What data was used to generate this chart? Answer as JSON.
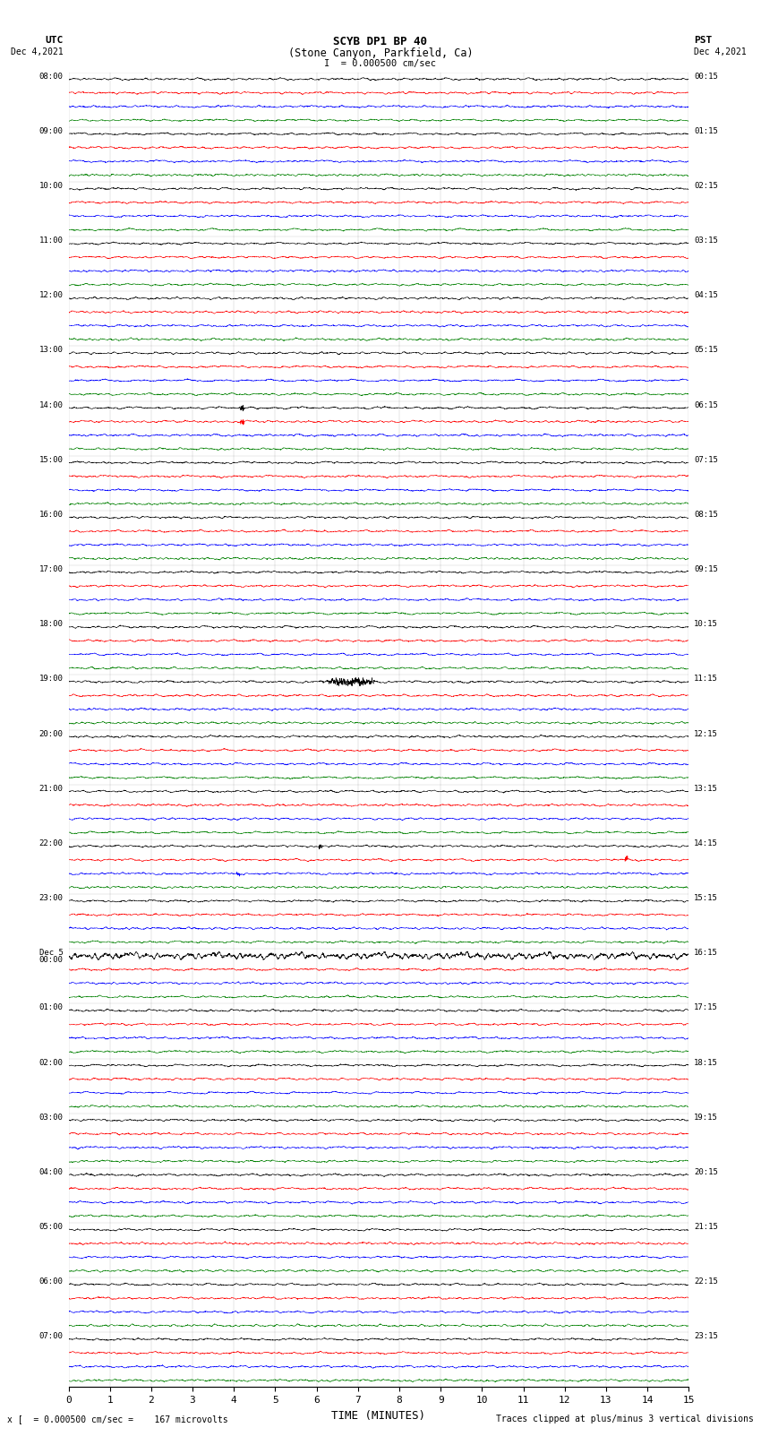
{
  "title_line1": "SCYB DP1 BP 40",
  "title_line2": "(Stone Canyon, Parkfield, Ca)",
  "scale_text": "I  = 0.000500 cm/sec",
  "left_header": "UTC",
  "left_date": "Dec 4,2021",
  "right_header": "PST",
  "right_date": "Dec 4,2021",
  "xlabel": "TIME (MINUTES)",
  "footer_left": "x [  = 0.000500 cm/sec =    167 microvolts",
  "footer_right": "Traces clipped at plus/minus 3 vertical divisions",
  "xlim": [
    0,
    15
  ],
  "xticks": [
    0,
    1,
    2,
    3,
    4,
    5,
    6,
    7,
    8,
    9,
    10,
    11,
    12,
    13,
    14,
    15
  ],
  "bg_color": "#ffffff",
  "trace_colors": [
    "black",
    "red",
    "blue",
    "green"
  ],
  "left_times_utc": [
    "08:00",
    "09:00",
    "10:00",
    "11:00",
    "12:00",
    "13:00",
    "14:00",
    "15:00",
    "16:00",
    "17:00",
    "18:00",
    "19:00",
    "20:00",
    "21:00",
    "22:00",
    "23:00",
    "Dec 5",
    "00:00",
    "01:00",
    "02:00",
    "03:00",
    "04:00",
    "05:00",
    "06:00",
    "07:00"
  ],
  "left_times_row": [
    0,
    4,
    8,
    12,
    16,
    20,
    24,
    28,
    32,
    36,
    40,
    44,
    48,
    52,
    56,
    60,
    64,
    64,
    68,
    72,
    76,
    80,
    84,
    88,
    92
  ],
  "right_times_pst": [
    "00:15",
    "01:15",
    "02:15",
    "03:15",
    "04:15",
    "05:15",
    "06:15",
    "07:15",
    "08:15",
    "09:15",
    "10:15",
    "11:15",
    "12:15",
    "13:15",
    "14:15",
    "15:15",
    "16:15",
    "17:15",
    "18:15",
    "19:15",
    "20:15",
    "21:15",
    "22:15",
    "23:15"
  ],
  "right_times_row": [
    0,
    4,
    8,
    12,
    16,
    20,
    24,
    28,
    32,
    36,
    40,
    44,
    48,
    52,
    56,
    60,
    64,
    68,
    72,
    76,
    80,
    84,
    88,
    92
  ],
  "n_rows": 96,
  "noise_amplitude": 0.1,
  "noise_scale": 0.35,
  "event_row_large_eq": 44,
  "event_col_large_eq": 6.2,
  "event_amp_large": 3.0,
  "special_events": [
    {
      "row": 24,
      "col": 4.2,
      "amp": 1.5,
      "color_check": "red"
    },
    {
      "row": 25,
      "col": 4.2,
      "amp": 1.5,
      "color_check": "black"
    },
    {
      "row": 56,
      "col": 6.1,
      "amp": 1.2,
      "color_check": "red"
    },
    {
      "row": 57,
      "col": 13.5,
      "amp": 1.2,
      "color_check": "black"
    },
    {
      "row": 58,
      "col": 4.1,
      "amp": 1.0,
      "color_check": "blue"
    }
  ],
  "dec5_00_row": 64,
  "grid_color": "#888888",
  "grid_alpha": 0.5,
  "grid_linewidth": 0.3
}
